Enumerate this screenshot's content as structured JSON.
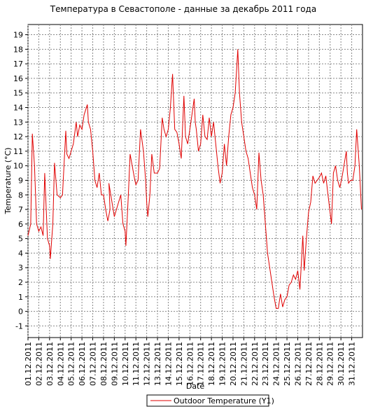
{
  "chart_data": {
    "type": "line",
    "title": "Температура в Севастополе - данные за декабрь 2011 года",
    "x_label": "Date",
    "y_label": "Temperature (°C)",
    "xlim": [
      1,
      32
    ],
    "ylim": [
      -1.8,
      19.7
    ],
    "xticks": [
      {
        "value": 1,
        "label": "01.12.2011"
      },
      {
        "value": 2,
        "label": "02.12.2011"
      },
      {
        "value": 3,
        "label": "03.12.2011"
      },
      {
        "value": 4,
        "label": "04.12.2011"
      },
      {
        "value": 5,
        "label": "05.12.2011"
      },
      {
        "value": 6,
        "label": "06.12.2011"
      },
      {
        "value": 7,
        "label": "07.12.2011"
      },
      {
        "value": 8,
        "label": "08.12.2011"
      },
      {
        "value": 9,
        "label": "09.12.2011"
      },
      {
        "value": 10,
        "label": "10.12.2011"
      },
      {
        "value": 11,
        "label": "11.12.2011"
      },
      {
        "value": 12,
        "label": "12.12.2011"
      },
      {
        "value": 13,
        "label": "13.12.2011"
      },
      {
        "value": 14,
        "label": "14.12.2011"
      },
      {
        "value": 15,
        "label": "15.12.2011"
      },
      {
        "value": 16,
        "label": "16.12.2011"
      },
      {
        "value": 17,
        "label": "17.12.2011"
      },
      {
        "value": 18,
        "label": "18.12.2011"
      },
      {
        "value": 19,
        "label": "19.12.2011"
      },
      {
        "value": 20,
        "label": "20.12.2011"
      },
      {
        "value": 21,
        "label": "21.12.2011"
      },
      {
        "value": 22,
        "label": "22.12.2011"
      },
      {
        "value": 23,
        "label": "23.12.2011"
      },
      {
        "value": 24,
        "label": "24.12.2011"
      },
      {
        "value": 25,
        "label": "25.12.2011"
      },
      {
        "value": 26,
        "label": "26.12.2011"
      },
      {
        "value": 27,
        "label": "27.12.2011"
      },
      {
        "value": 28,
        "label": "28.12.2011"
      },
      {
        "value": 29,
        "label": "29.12.2011"
      },
      {
        "value": 30,
        "label": "30.12.2011"
      },
      {
        "value": 31,
        "label": "31.12.2011"
      }
    ],
    "yticks": [
      -1,
      0,
      1,
      2,
      3,
      4,
      5,
      6,
      7,
      8,
      9,
      10,
      11,
      12,
      13,
      14,
      15,
      16,
      17,
      18,
      19
    ],
    "grid": true,
    "x": [
      1.0,
      1.25,
      1.4,
      1.6,
      1.8,
      2.0,
      2.2,
      2.4,
      2.55,
      2.8,
      3.0,
      3.07,
      3.3,
      3.46,
      3.7,
      4.0,
      4.2,
      4.5,
      4.6,
      4.8,
      5.0,
      5.2,
      5.47,
      5.6,
      5.8,
      6.0,
      6.2,
      6.5,
      6.6,
      6.8,
      7.0,
      7.2,
      7.4,
      7.6,
      7.8,
      8.0,
      8.2,
      8.4,
      8.6,
      8.5,
      9.0,
      9.2,
      9.4,
      9.6,
      9.8,
      10.0,
      10.07,
      10.3,
      10.46,
      10.9,
      11.0,
      11.2,
      11.43,
      11.7,
      11.9,
      12.0,
      12.1,
      12.3,
      12.47,
      12.7,
      13.0,
      13.2,
      13.44,
      13.6,
      13.8,
      14.0,
      14.2,
      14.4,
      14.6,
      14.8,
      15.0,
      15.2,
      15.45,
      15.6,
      15.8,
      16.0,
      16.4,
      16.5,
      16.6,
      16.8,
      17.0,
      17.2,
      17.4,
      17.6,
      17.8,
      18.0,
      18.2,
      18.4,
      18.6,
      18.8,
      19.0,
      19.2,
      19.4,
      19.6,
      19.8,
      20.0,
      20.2,
      20.44,
      20.6,
      20.8,
      21.0,
      21.2,
      21.4,
      21.6,
      21.8,
      22.0,
      22.2,
      22.4,
      22.6,
      22.8,
      23.0,
      23.2,
      23.4,
      23.6,
      23.8,
      24.0,
      24.2,
      24.4,
      24.6,
      24.8,
      25.0,
      25.2,
      25.4,
      25.6,
      25.8,
      26.0,
      26.2,
      26.47,
      26.6,
      26.8,
      27.0,
      27.2,
      27.4,
      27.6,
      27.8,
      28.0,
      28.2,
      28.4,
      28.6,
      28.8,
      29.0,
      29.13,
      29.3,
      29.5,
      29.7,
      29.9,
      30.1,
      30.5,
      30.6,
      30.7,
      30.9,
      31.1,
      31.3,
      31.46,
      31.7,
      31.9
    ],
    "series": [
      {
        "name": "Outdoor Temperature (Y1)",
        "color": "#e00000",
        "values": [
          5.2,
          6,
          12.2,
          10,
          6,
          5.5,
          5.8,
          5.2,
          9.5,
          5,
          4.5,
          3.6,
          6,
          10.2,
          8,
          7.8,
          8,
          12.4,
          10.8,
          10.5,
          11,
          11.5,
          13,
          12,
          12.8,
          12.5,
          13.5,
          14.2,
          13,
          12.5,
          11,
          9,
          8.5,
          9.5,
          8,
          8,
          7,
          6.2,
          7,
          8.8,
          6.5,
          7,
          7.5,
          8,
          6,
          5.5,
          4.5,
          8,
          10.8,
          9,
          8.7,
          9,
          12.5,
          11,
          9,
          7.5,
          6.5,
          8,
          10.8,
          9.5,
          9.5,
          9.8,
          13.3,
          12.5,
          12,
          12.5,
          14,
          16.3,
          12.5,
          12.3,
          11.5,
          10.5,
          14.8,
          12,
          11.5,
          12.5,
          14.6,
          13,
          12.5,
          11,
          11.5,
          13.5,
          12,
          11.8,
          13.3,
          12,
          13,
          11.5,
          10,
          8.8,
          9.5,
          11.5,
          10,
          12,
          13.5,
          14,
          15,
          18,
          15,
          13,
          12,
          11,
          10.5,
          9.5,
          8.5,
          8,
          7,
          10.9,
          9,
          8,
          6,
          4,
          3,
          2,
          1,
          0.2,
          0.2,
          1.2,
          0.3,
          0.8,
          1,
          1.8,
          2,
          2.5,
          2.2,
          2.8,
          1.5,
          5.2,
          2.8,
          5,
          6.8,
          7.5,
          9.3,
          8.8,
          9,
          9.2,
          9.5,
          8.8,
          9.3,
          8,
          6.8,
          6,
          9.5,
          10,
          9,
          8.5,
          9.2,
          11,
          9.5,
          8.8,
          9,
          9,
          10,
          12.5,
          10,
          7
        ]
      }
    ],
    "legend": "bottom"
  }
}
